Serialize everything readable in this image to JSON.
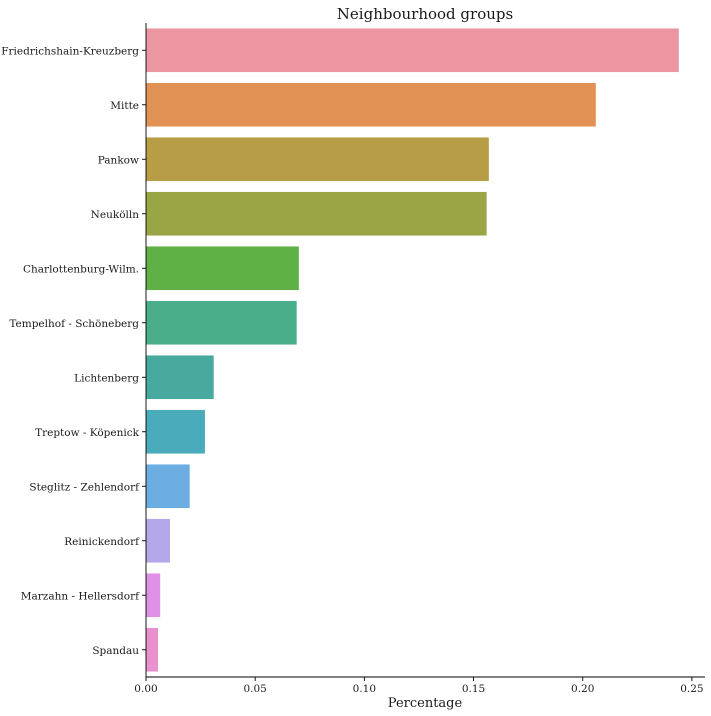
{
  "chart_data": {
    "type": "bar",
    "orientation": "horizontal",
    "title": "Neighbourhood groups",
    "xlabel": "Percentage",
    "ylabel": "",
    "xlim": [
      0,
      0.256
    ],
    "xticks": [
      0.0,
      0.05,
      0.1,
      0.15,
      0.2,
      0.25
    ],
    "xtick_labels": [
      "0.00",
      "0.05",
      "0.10",
      "0.15",
      "0.20",
      "0.25"
    ],
    "grid": false,
    "legend": "none",
    "categories": [
      "Friedrichshain-Kreuzberg",
      "Mitte",
      "Pankow",
      "Neukölln",
      "Charlottenburg-Wilm.",
      "Tempelhof - Schöneberg",
      "Lichtenberg",
      "Treptow - Köpenick",
      "Steglitz - Zehlendorf",
      "Reinickendorf",
      "Marzahn - Hellersdorf",
      "Spandau"
    ],
    "values": [
      0.244,
      0.206,
      0.157,
      0.156,
      0.07,
      0.069,
      0.031,
      0.027,
      0.02,
      0.011,
      0.0065,
      0.0055
    ],
    "colors": [
      "#eb96a1",
      "#e39255",
      "#b89d47",
      "#9aa546",
      "#5fb045",
      "#4aae8a",
      "#48aa9f",
      "#4aabbb",
      "#6cade1",
      "#b6a7ea",
      "#e08fe6",
      "#e891ce"
    ]
  }
}
